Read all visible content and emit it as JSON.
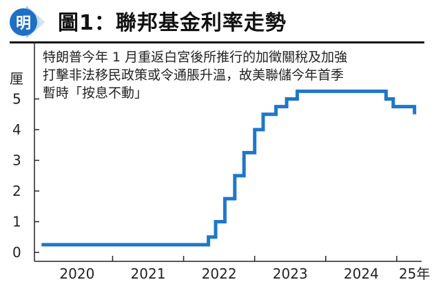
{
  "header": {
    "logo_char": "明",
    "title": "圖1：聯邦基金利率走勢"
  },
  "annotation_lines": [
    "特朗普今年 1 月重返白宮後所推行的加徵關稅及加強",
    "打擊非法移民政策或令通脹升溫，故美聯儲今年首季",
    "暫時「按息不動」"
  ],
  "colors": {
    "line": "#1f77c8",
    "accent": "#1f6fc4",
    "axis": "#222222"
  },
  "chart_data": {
    "type": "line",
    "step": true,
    "title": "圖1：聯邦基金利率走勢",
    "ylabel": "厘",
    "xlabel": "",
    "ylim": [
      0,
      5.5
    ],
    "xlim": [
      2019.9,
      2025.35
    ],
    "yticks": [
      0,
      1,
      2,
      3,
      4,
      5
    ],
    "xtick_labels": [
      {
        "label": "2020",
        "x": 2020.5
      },
      {
        "label": "2021",
        "x": 2021.5
      },
      {
        "label": "2022",
        "x": 2022.5
      },
      {
        "label": "2023",
        "x": 2023.5
      },
      {
        "label": "2024",
        "x": 2024.5
      },
      {
        "label": "25年",
        "x": 2025.25
      }
    ],
    "x_dividers": [
      2021.0,
      2022.0,
      2023.0,
      2024.0,
      2025.0
    ],
    "series": [
      {
        "x": [
          2020.0,
          2022.2,
          2022.35,
          2022.45,
          2022.58,
          2022.72,
          2022.85,
          2023.0,
          2023.12,
          2023.3,
          2023.45,
          2023.6,
          2024.7,
          2024.85,
          2024.95,
          2025.25
        ],
        "y": [
          0.25,
          0.25,
          0.5,
          1.0,
          1.75,
          2.5,
          3.25,
          4.0,
          4.5,
          4.75,
          5.0,
          5.25,
          5.25,
          5.0,
          4.75,
          4.5
        ]
      }
    ]
  }
}
